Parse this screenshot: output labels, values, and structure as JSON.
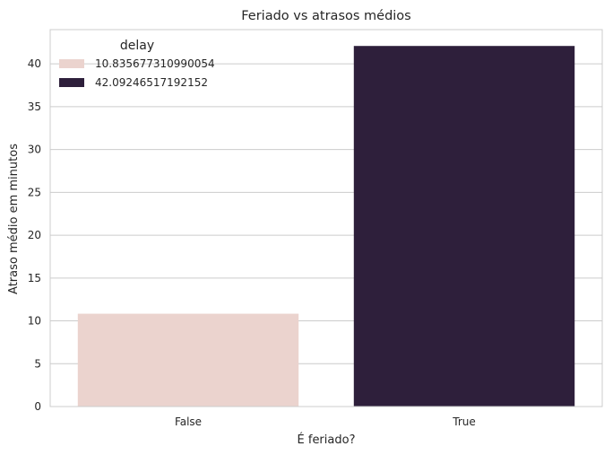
{
  "chart_data": {
    "type": "bar",
    "title": "Feriado vs atrasos médios",
    "xlabel": "É feriado?",
    "ylabel": "Atraso médio em minutos",
    "categories": [
      "False",
      "True"
    ],
    "values": [
      10.835677310990054,
      42.09246517192152
    ],
    "colors": [
      "#ebd3ce",
      "#2e1f3b"
    ],
    "ylim": [
      0,
      44
    ],
    "yticks": [
      0,
      5,
      10,
      15,
      20,
      25,
      30,
      35,
      40
    ],
    "grid": "horizontal",
    "legend": {
      "title": "delay",
      "placement": "top-left",
      "entries": [
        "10.835677310990054",
        "42.09246517192152"
      ]
    }
  }
}
